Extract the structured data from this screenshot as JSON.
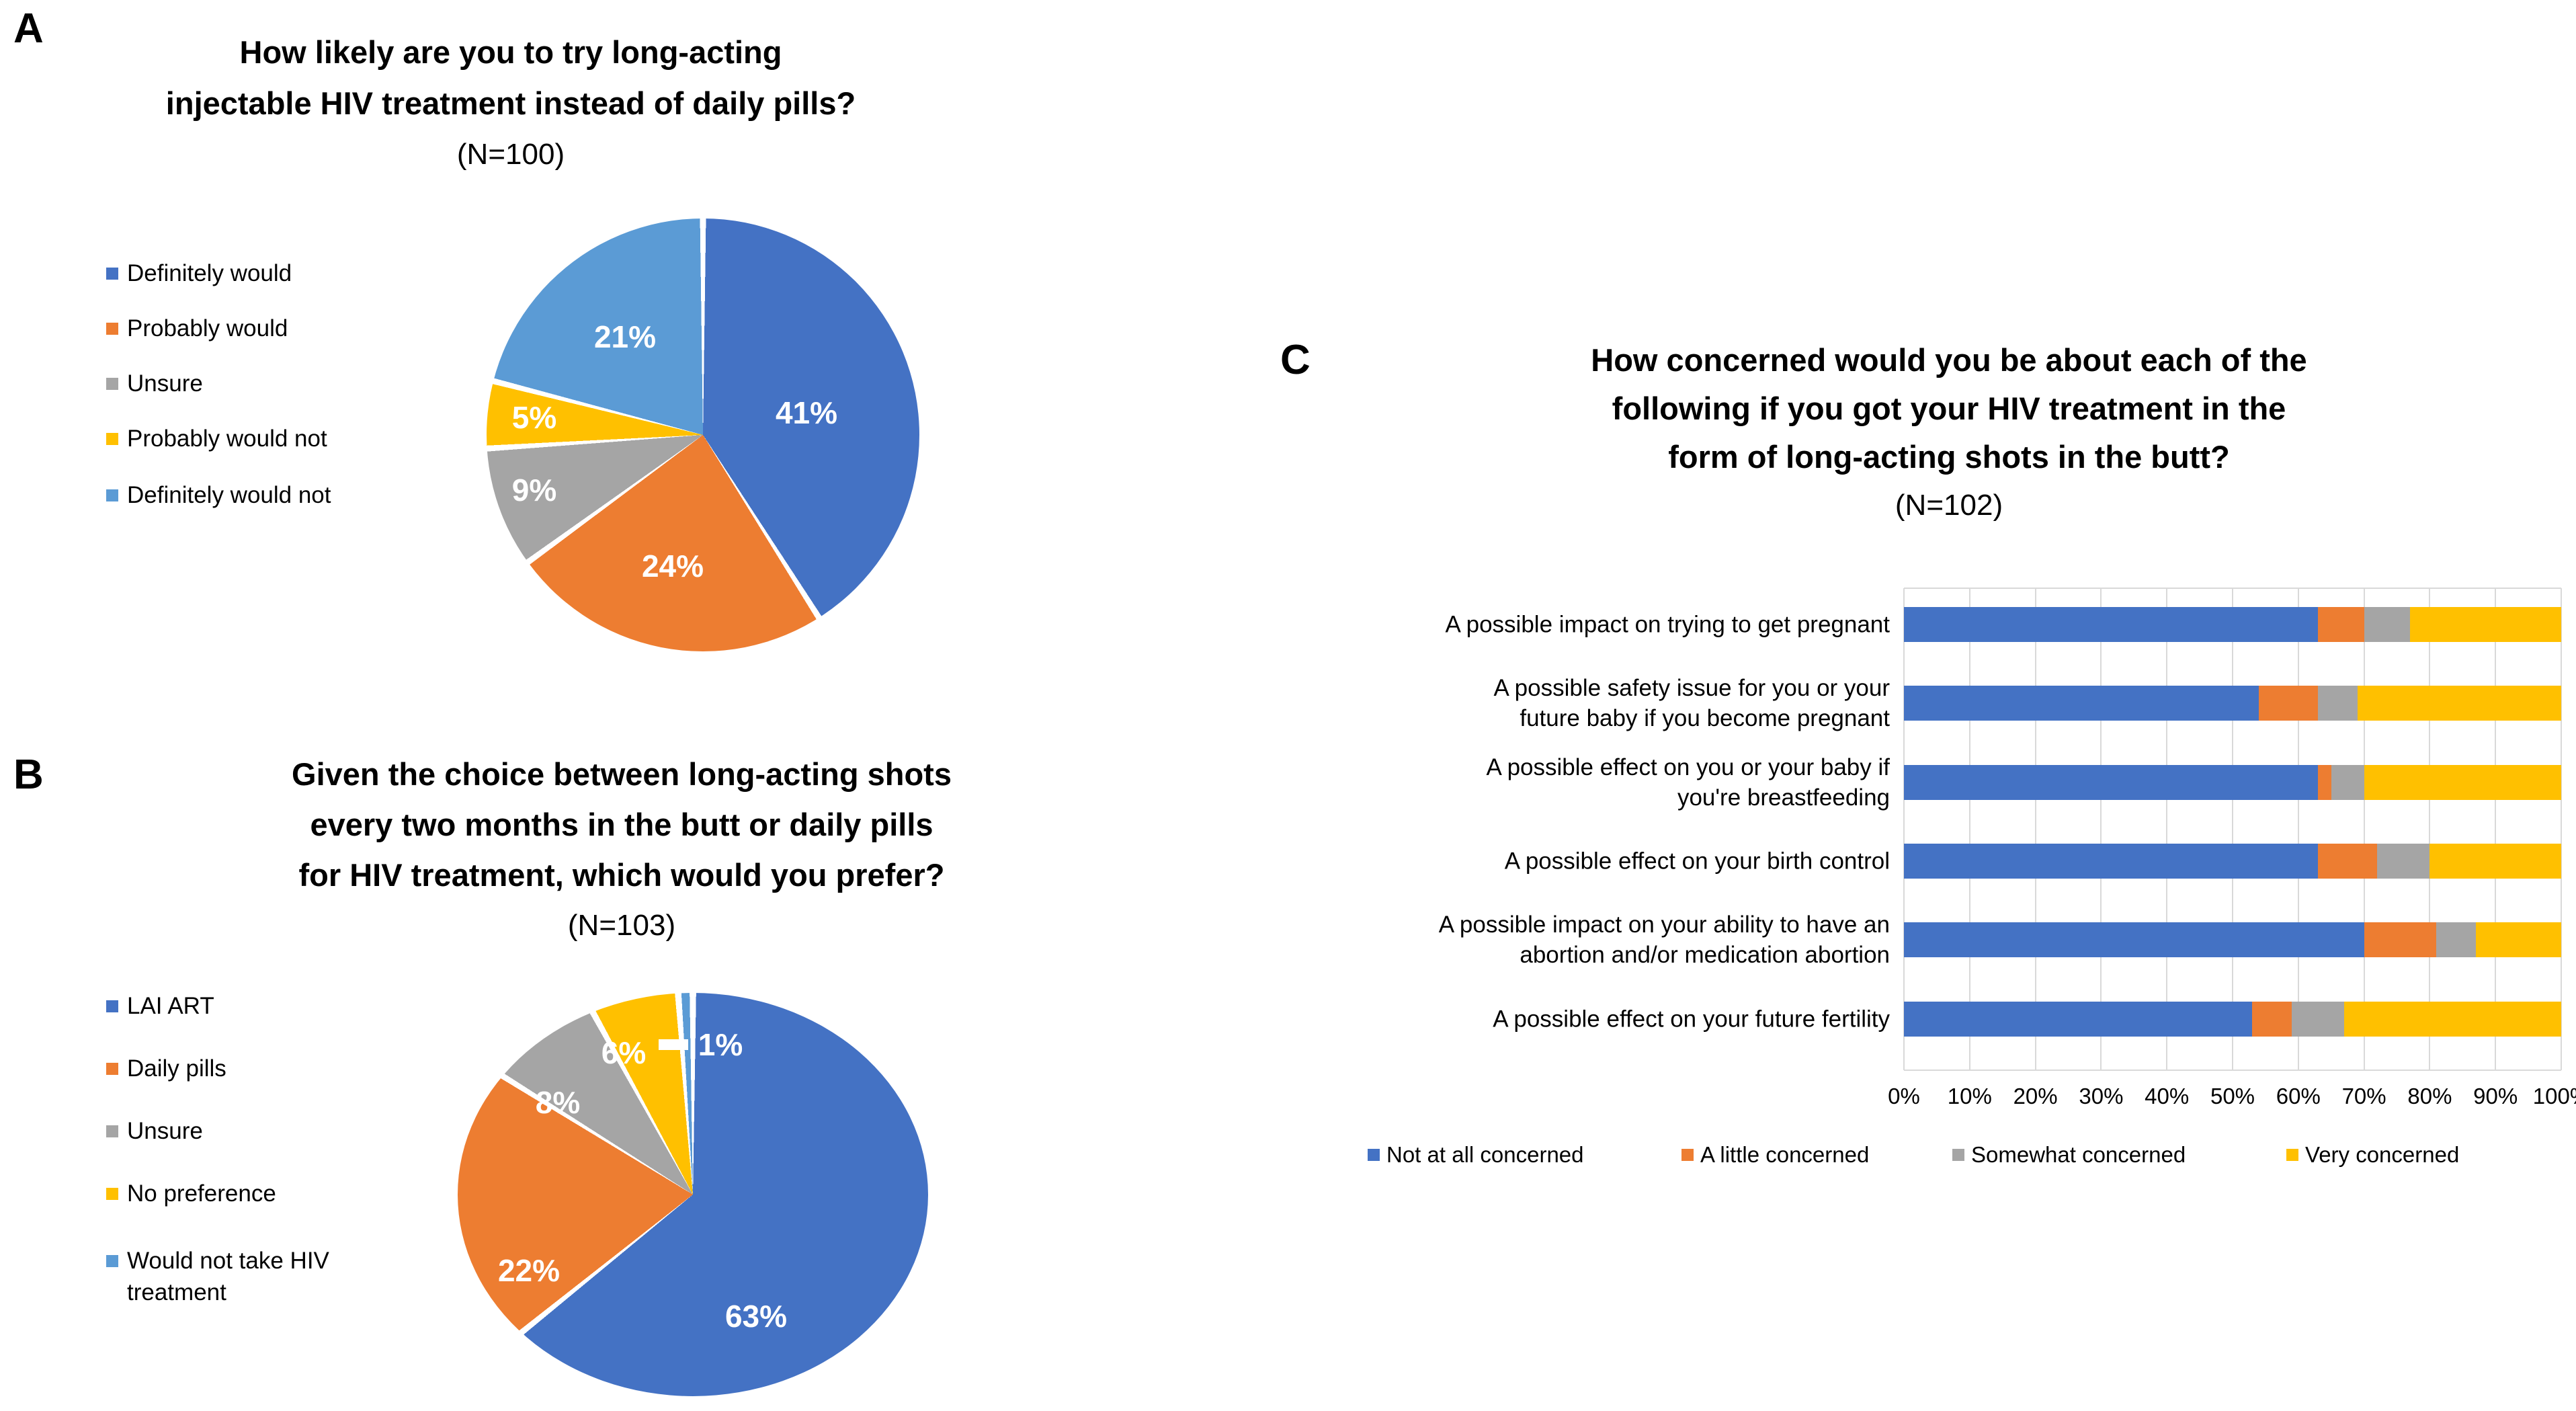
{
  "panels": {
    "a": {
      "letter": "A",
      "title_lines": [
        "How likely are you to try long-acting",
        "injectable HIV treatment instead of daily pills?"
      ],
      "n_label": "(N=100)"
    },
    "b": {
      "letter": "B",
      "title_lines": [
        "Given the choice between long-acting shots",
        "every two months in the butt or daily pills",
        "for HIV treatment, which would you prefer?"
      ],
      "n_label": "(N=103)"
    },
    "c": {
      "letter": "C",
      "title_lines": [
        "How concerned would you be about each of the",
        "following if you got your HIV treatment in the",
        "form of long-acting shots in the butt?"
      ],
      "n_label": "(N=102)"
    }
  },
  "colors": {
    "blue": "#4472C4",
    "orange": "#ED7D31",
    "gray": "#A5A5A5",
    "yellow": "#FFC000",
    "light_blue": "#5B9BD5",
    "gridline": "#D9D9D9",
    "data_label_text": "#FFFFFF"
  },
  "chart_data": [
    {
      "id": "a",
      "type": "pie",
      "title": "How likely are you to try long-acting injectable HIV treatment instead of daily pills?",
      "n": "(N=100)",
      "labels": [
        "Definitely would",
        "Probably would",
        "Unsure",
        "Probably would not",
        "Definitely would not"
      ],
      "values": [
        41,
        24,
        9,
        5,
        21
      ],
      "data_labels": [
        "41%",
        "24%",
        "9%",
        "5%",
        "21%"
      ],
      "colors": [
        "#4472C4",
        "#ED7D31",
        "#A5A5A5",
        "#FFC000",
        "#5B9BD5"
      ],
      "legend_position": "left",
      "start_angle_deg": 0,
      "direction": "clockwise"
    },
    {
      "id": "b",
      "type": "pie",
      "title": "Given the choice between long-acting shots every two months in the butt or daily pills for HIV treatment, which would you prefer?",
      "n": "(N=103)",
      "labels": [
        "LAI ART",
        "Daily pills",
        "Unsure",
        "No preference",
        "Would not take HIV treatment"
      ],
      "values": [
        63,
        22,
        8,
        6,
        1
      ],
      "data_labels": [
        "63%",
        "22%",
        "8%",
        "6%",
        "1%"
      ],
      "colors": [
        "#4472C4",
        "#ED7D31",
        "#A5A5A5",
        "#FFC000",
        "#5B9BD5"
      ],
      "legend_position": "left",
      "start_angle_deg": 0,
      "direction": "clockwise",
      "callout": {
        "label": "1%",
        "slice_index": 4
      }
    },
    {
      "id": "c",
      "type": "stacked-bar-horizontal",
      "title": "How concerned would you be about each of the following if you got your HIV treatment in the form of long-acting shots in the butt?",
      "n": "(N=102)",
      "categories": [
        "A possible impact on trying to get pregnant",
        "A possible safety issue for you or your future baby if you become pregnant",
        "A possible effect on you or your baby if you're breastfeeding",
        "A possible effect on your birth control",
        "A possible impact on your ability to have an abortion and/or medication abortion",
        "A possible effect on your future fertility"
      ],
      "category_lines": [
        [
          "A possible impact on trying to get pregnant"
        ],
        [
          "A possible safety issue for you or your",
          "future baby if you become pregnant"
        ],
        [
          "A possible effect on you or your baby if",
          "you're breastfeeding"
        ],
        [
          "A possible effect on your birth control"
        ],
        [
          "A possible impact on your ability to have an",
          "abortion and/or medication abortion"
        ],
        [
          "A possible effect on your future fertility"
        ]
      ],
      "series": [
        {
          "name": "Not at all concerned",
          "color": "#4472C4",
          "values": [
            63,
            54,
            63,
            63,
            70,
            53
          ]
        },
        {
          "name": "A little concerned",
          "color": "#ED7D31",
          "values": [
            7,
            9,
            2,
            9,
            11,
            6
          ]
        },
        {
          "name": "Somewhat concerned",
          "color": "#A5A5A5",
          "values": [
            7,
            6,
            5,
            8,
            6,
            8
          ]
        },
        {
          "name": "Very concerned",
          "color": "#FFC000",
          "values": [
            23,
            31,
            30,
            20,
            13,
            33
          ]
        }
      ],
      "x_ticks": [
        "0%",
        "10%",
        "20%",
        "30%",
        "40%",
        "50%",
        "60%",
        "70%",
        "80%",
        "90%",
        "100%"
      ],
      "xlim": [
        0,
        100
      ],
      "grid": true,
      "legend_position": "bottom"
    }
  ]
}
